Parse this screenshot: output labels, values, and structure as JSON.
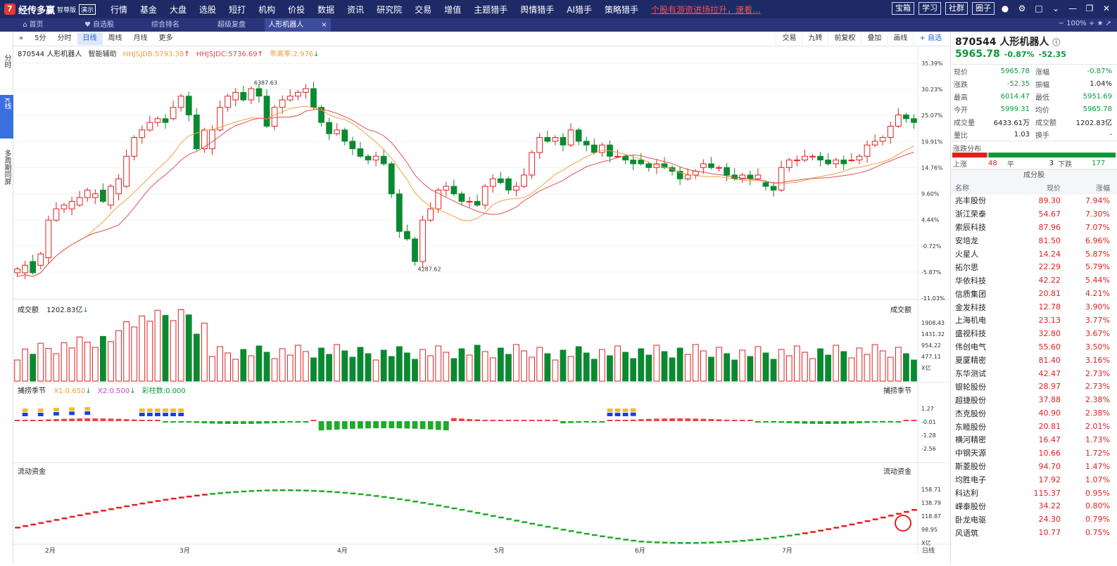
{
  "app": {
    "name": "经传多赢",
    "edition": "智尊版",
    "demo_badge": "演示"
  },
  "menu": [
    "行情",
    "基金",
    "大盘",
    "选股",
    "短打",
    "机构",
    "价投",
    "数据",
    "资讯",
    "研究院",
    "交易",
    "增值",
    "主题猎手",
    "舆情猎手",
    "AI猎手",
    "策略猎手"
  ],
  "menu_alert": "个股有游资进场拉升，速看...",
  "top_buttons": [
    "宝箱",
    "学习",
    "社群",
    "圈子"
  ],
  "tabs": [
    {
      "label": "首页",
      "icon": "home-icon"
    },
    {
      "label": "自选股",
      "icon": "heart-icon"
    },
    {
      "label": "综合排名"
    },
    {
      "label": "超级复盘"
    },
    {
      "label": "人形机器人",
      "active": true
    }
  ],
  "left_rail": [
    "分时",
    "K线",
    "多周期同屏"
  ],
  "toolbar": {
    "periods": [
      "5分",
      "分时",
      "日线",
      "周线",
      "月线",
      "更多"
    ],
    "selected": "日线",
    "right": [
      "交易",
      "九转",
      "前复权",
      "叠加",
      "画线",
      "+ 自选"
    ],
    "zoom": "100%"
  },
  "kline_header": {
    "code_name": "870544 人形机器人",
    "assist": "智能辅助",
    "ind1": "HHJSJDB:5793.38",
    "ind2": "HHJSJDC:5736.69",
    "ind3": "乖离率:2.976"
  },
  "kline_axis": [
    "35.39%",
    "30.23%",
    "25.07%",
    "19.91%",
    "14.76%",
    "9.60%",
    "4.44%",
    "-0.72%",
    "-5.87%",
    "-11.03%"
  ],
  "kline_marks": {
    "high": "6387.63",
    "low": "4287.62"
  },
  "vol_panel": {
    "title": "成交额",
    "value": "1202.83亿",
    "right_title": "成交额",
    "axis": [
      "1908.43",
      "1431.32",
      "954.22",
      "477.11",
      "X亿"
    ]
  },
  "ind_panel": {
    "title": "捕捞季节",
    "x1": "X1:0.650",
    "x2": "X2:0.500",
    "cz": "彩柱数:0.000",
    "right_title": "捕捞季节",
    "axis": [
      "1.27",
      "-0.01",
      "-1.28",
      "-2.56"
    ]
  },
  "flow_panel": {
    "title": "流动资金",
    "right_title": "流动资金",
    "axis": [
      "158.71",
      "138.79",
      "118.87",
      "98.95",
      "X亿"
    ]
  },
  "x_months": [
    "2月",
    "3月",
    "4月",
    "5月",
    "6月",
    "7月"
  ],
  "x_axis_right": "日线",
  "quote": {
    "title": "870544 人形机器人",
    "price": "5965.78",
    "change_pct": "-0.87%",
    "change": "-52.35",
    "rows": [
      {
        "k": "现价",
        "v": "5965.78",
        "vc": "green",
        "k2": "涨幅",
        "v2": "-0.87%",
        "v2c": "green"
      },
      {
        "k": "涨跌",
        "v": "-52.35",
        "vc": "green",
        "k2": "振幅",
        "v2": "1.04%",
        "v2c": "dark"
      },
      {
        "k": "最高",
        "v": "6014.47",
        "vc": "green",
        "k2": "最低",
        "v2": "5951.69",
        "v2c": "green"
      },
      {
        "k": "今开",
        "v": "5999.31",
        "vc": "green",
        "k2": "均价",
        "v2": "5965.78",
        "v2c": "green"
      },
      {
        "k": "成交量",
        "v": "6433.61万",
        "vc": "dark",
        "k2": "成交额",
        "v2": "1202.83亿",
        "v2c": "dark"
      },
      {
        "k": "量比",
        "v": "1.03",
        "vc": "dark",
        "k2": "换手",
        "v2": "-",
        "v2c": "dark"
      }
    ],
    "distribution": {
      "title": "涨跌分布",
      "up_label": "上涨",
      "up": "48",
      "flat_label": "平",
      "flat": "3",
      "down_label": "下跌",
      "down": "177"
    },
    "constituents_title": "成分股",
    "cols": [
      "名称",
      "现价",
      "涨幅"
    ],
    "stocks": [
      [
        "兆丰股份",
        "89.30",
        "7.94%"
      ],
      [
        "浙江荣泰",
        "54.67",
        "7.30%"
      ],
      [
        "索辰科技",
        "87.96",
        "7.07%"
      ],
      [
        "安培龙",
        "81.50",
        "6.96%"
      ],
      [
        "火星人",
        "14.24",
        "5.87%"
      ],
      [
        "拓尔思",
        "22.29",
        "5.79%"
      ],
      [
        "华依科技",
        "42.22",
        "5.44%"
      ],
      [
        "信质集团",
        "20.81",
        "4.21%"
      ],
      [
        "金发科技",
        "12.78",
        "3.90%"
      ],
      [
        "上海机电",
        "23.13",
        "3.77%"
      ],
      [
        "盛视科技",
        "32.80",
        "3.67%"
      ],
      [
        "伟创电气",
        "55.60",
        "3.50%"
      ],
      [
        "夏厦精密",
        "81.40",
        "3.16%"
      ],
      [
        "东华测试",
        "42.47",
        "2.73%"
      ],
      [
        "银轮股份",
        "28.97",
        "2.73%"
      ],
      [
        "超捷股份",
        "37.88",
        "2.38%"
      ],
      [
        "杰克股份",
        "40.90",
        "2.38%"
      ],
      [
        "东睦股份",
        "20.81",
        "2.01%"
      ],
      [
        "横河精密",
        "16.47",
        "1.73%"
      ],
      [
        "中钢天源",
        "10.66",
        "1.72%"
      ],
      [
        "斯菱股份",
        "94.70",
        "1.47%"
      ],
      [
        "均胜电子",
        "17.92",
        "1.07%"
      ],
      [
        "科达利",
        "115.37",
        "0.95%"
      ],
      [
        "嵘泰股份",
        "34.22",
        "0.80%"
      ],
      [
        "卧龙电驱",
        "24.30",
        "0.79%"
      ],
      [
        "风语筑",
        "10.77",
        "0.75%"
      ]
    ]
  },
  "chart_data": {
    "type": "candlestick",
    "series_open_close": [
      [
        0,
        1
      ],
      [
        0,
        2
      ],
      [
        3,
        0
      ],
      [
        2,
        5
      ],
      [
        4,
        14
      ],
      [
        14,
        17
      ],
      [
        17,
        18
      ],
      [
        17,
        19
      ],
      [
        18,
        20
      ],
      [
        20,
        22
      ],
      [
        20,
        21
      ],
      [
        22,
        19
      ],
      [
        18,
        23
      ],
      [
        21,
        25
      ],
      [
        23,
        31
      ],
      [
        31,
        36
      ],
      [
        36,
        38
      ],
      [
        38,
        40
      ],
      [
        40,
        41
      ],
      [
        41,
        40
      ],
      [
        41,
        44
      ],
      [
        44,
        47
      ],
      [
        47,
        42
      ],
      [
        42,
        33
      ],
      [
        33,
        38
      ],
      [
        33,
        38
      ],
      [
        38,
        44
      ],
      [
        44,
        47
      ],
      [
        46,
        48
      ],
      [
        48,
        46
      ],
      [
        46,
        49
      ],
      [
        49,
        47
      ],
      [
        47,
        39
      ],
      [
        39,
        44
      ],
      [
        44,
        46
      ],
      [
        46,
        47
      ],
      [
        47,
        48
      ],
      [
        48,
        49
      ],
      [
        49,
        44
      ],
      [
        44,
        40
      ],
      [
        40,
        37
      ],
      [
        37,
        38
      ],
      [
        38,
        35
      ],
      [
        35,
        33
      ],
      [
        33,
        31
      ],
      [
        31,
        30
      ],
      [
        30,
        31
      ],
      [
        31,
        29
      ],
      [
        29,
        21
      ],
      [
        21,
        11
      ],
      [
        11,
        9
      ],
      [
        9,
        3
      ],
      [
        3,
        14
      ],
      [
        14,
        17
      ],
      [
        17,
        22
      ],
      [
        22,
        23
      ],
      [
        23,
        21
      ],
      [
        21,
        19
      ],
      [
        19,
        19
      ],
      [
        19,
        18
      ],
      [
        18,
        23
      ],
      [
        23,
        25
      ],
      [
        25,
        24
      ],
      [
        25,
        22
      ],
      [
        22,
        23
      ],
      [
        23,
        26
      ],
      [
        26,
        32
      ],
      [
        32,
        36
      ],
      [
        36,
        35
      ],
      [
        35,
        36
      ],
      [
        36,
        34
      ],
      [
        34,
        38
      ],
      [
        38,
        35
      ],
      [
        35,
        34
      ],
      [
        34,
        32
      ],
      [
        32,
        34
      ],
      [
        34,
        31
      ],
      [
        31,
        31
      ],
      [
        31,
        30
      ],
      [
        30,
        29
      ],
      [
        30,
        29
      ],
      [
        29,
        28
      ],
      [
        28,
        29
      ],
      [
        29,
        28
      ],
      [
        28,
        27
      ],
      [
        27,
        25
      ],
      [
        25,
        26
      ],
      [
        26,
        27
      ],
      [
        28,
        29
      ],
      [
        29,
        28
      ],
      [
        28,
        28
      ],
      [
        28,
        26
      ],
      [
        26,
        25
      ],
      [
        25,
        26
      ],
      [
        26,
        25
      ],
      [
        25,
        26
      ],
      [
        24,
        23
      ],
      [
        23,
        22
      ],
      [
        22,
        28
      ],
      [
        28,
        30
      ],
      [
        30,
        30
      ],
      [
        30,
        31
      ],
      [
        31,
        31
      ],
      [
        31,
        30
      ],
      [
        30,
        29
      ],
      [
        29,
        30
      ],
      [
        30,
        29
      ],
      [
        30,
        30
      ],
      [
        30,
        31
      ],
      [
        31,
        34
      ],
      [
        34,
        35
      ],
      [
        35,
        36
      ],
      [
        36,
        39
      ],
      [
        39,
        42
      ],
      [
        42,
        41
      ],
      [
        41,
        40
      ]
    ]
  }
}
